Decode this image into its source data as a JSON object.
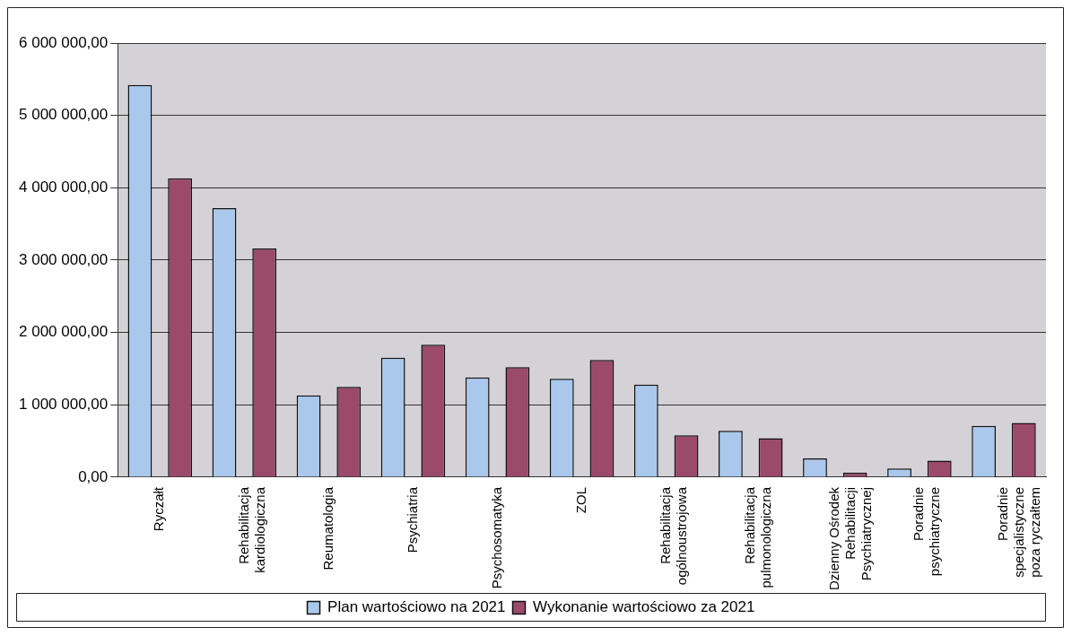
{
  "chart_data": {
    "type": "bar",
    "categories": [
      "Ryczałt",
      "Rehabilitacja\nkardiologiczna",
      "Reumatologia",
      "Psychiatria",
      "Psychosomatyka",
      "ZOL",
      "Rehabilitacja\nogólnoustrojowa",
      "Rehabilitacja\npulmonologiczna",
      "Dzienny Ośrodek\nRehabilitacji\nPsychiatrycznej",
      "Poradnie\npsychiatryczne",
      "Poradnie\nspecjalistyczne\npoza ryczałtem"
    ],
    "series": [
      {
        "name": "Plan wartościowo na 2021",
        "color": "#a9c8ec",
        "values": [
          5420000,
          3720000,
          1130000,
          1650000,
          1380000,
          1360000,
          1280000,
          640000,
          260000,
          120000,
          710000
        ]
      },
      {
        "name": "Wykonanie wartościowo za 2021",
        "color": "#9b4a6a",
        "values": [
          4130000,
          3160000,
          1250000,
          1830000,
          1520000,
          1620000,
          580000,
          540000,
          60000,
          230000,
          750000
        ]
      }
    ],
    "ylim": [
      0,
      6000000
    ],
    "yticks": [
      {
        "value": 0,
        "label": "0,00"
      },
      {
        "value": 1000000,
        "label": "1 000 000,00"
      },
      {
        "value": 2000000,
        "label": "2 000 000,00"
      },
      {
        "value": 3000000,
        "label": "3 000 000,00"
      },
      {
        "value": 4000000,
        "label": "4 000 000,00"
      },
      {
        "value": 5000000,
        "label": "5 000 000,00"
      },
      {
        "value": 6000000,
        "label": "6 000 000,00"
      }
    ],
    "grid": "y",
    "legend": "bottom"
  }
}
